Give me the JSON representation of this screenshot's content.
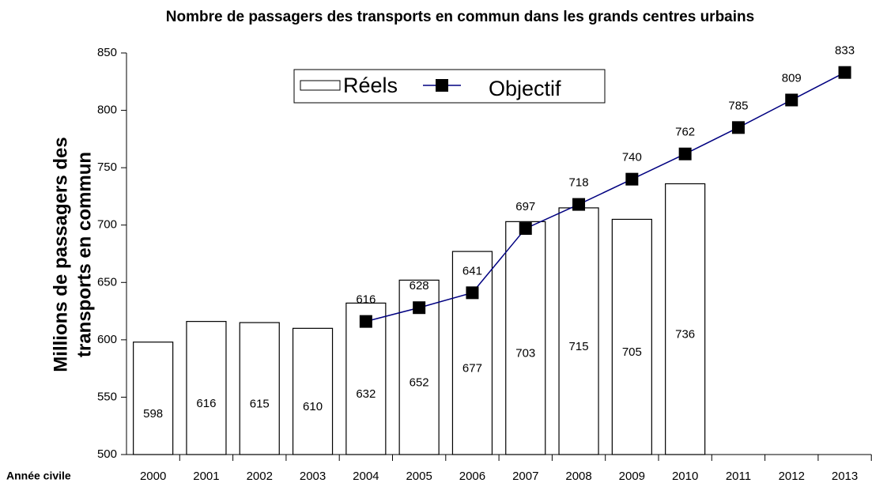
{
  "chart_data": {
    "type": "bar_line",
    "title": "Nombre de passagers des transports en commun dans les grands centres urbains",
    "y_label": [
      "Millions de passagers des",
      "transports en commun"
    ],
    "x_label": "Année civile",
    "categories": [
      "2000",
      "2001",
      "2002",
      "2003",
      "2004",
      "2005",
      "2006",
      "2007",
      "2008",
      "2009",
      "2010",
      "2011",
      "2012",
      "2013"
    ],
    "series": [
      {
        "name": "Réels",
        "kind": "bar",
        "color": "#ffffff",
        "values": [
          598,
          616,
          615,
          610,
          632,
          652,
          677,
          703,
          715,
          705,
          736,
          null,
          null,
          null
        ]
      },
      {
        "name": "Objectif",
        "kind": "line",
        "color": "#000080",
        "values": [
          null,
          null,
          null,
          null,
          616,
          628,
          641,
          697,
          718,
          740,
          762,
          785,
          809,
          833
        ]
      }
    ],
    "ylim": [
      500,
      850
    ],
    "yticks": [
      500,
      550,
      600,
      650,
      700,
      750,
      800,
      850
    ],
    "legend": "top"
  }
}
